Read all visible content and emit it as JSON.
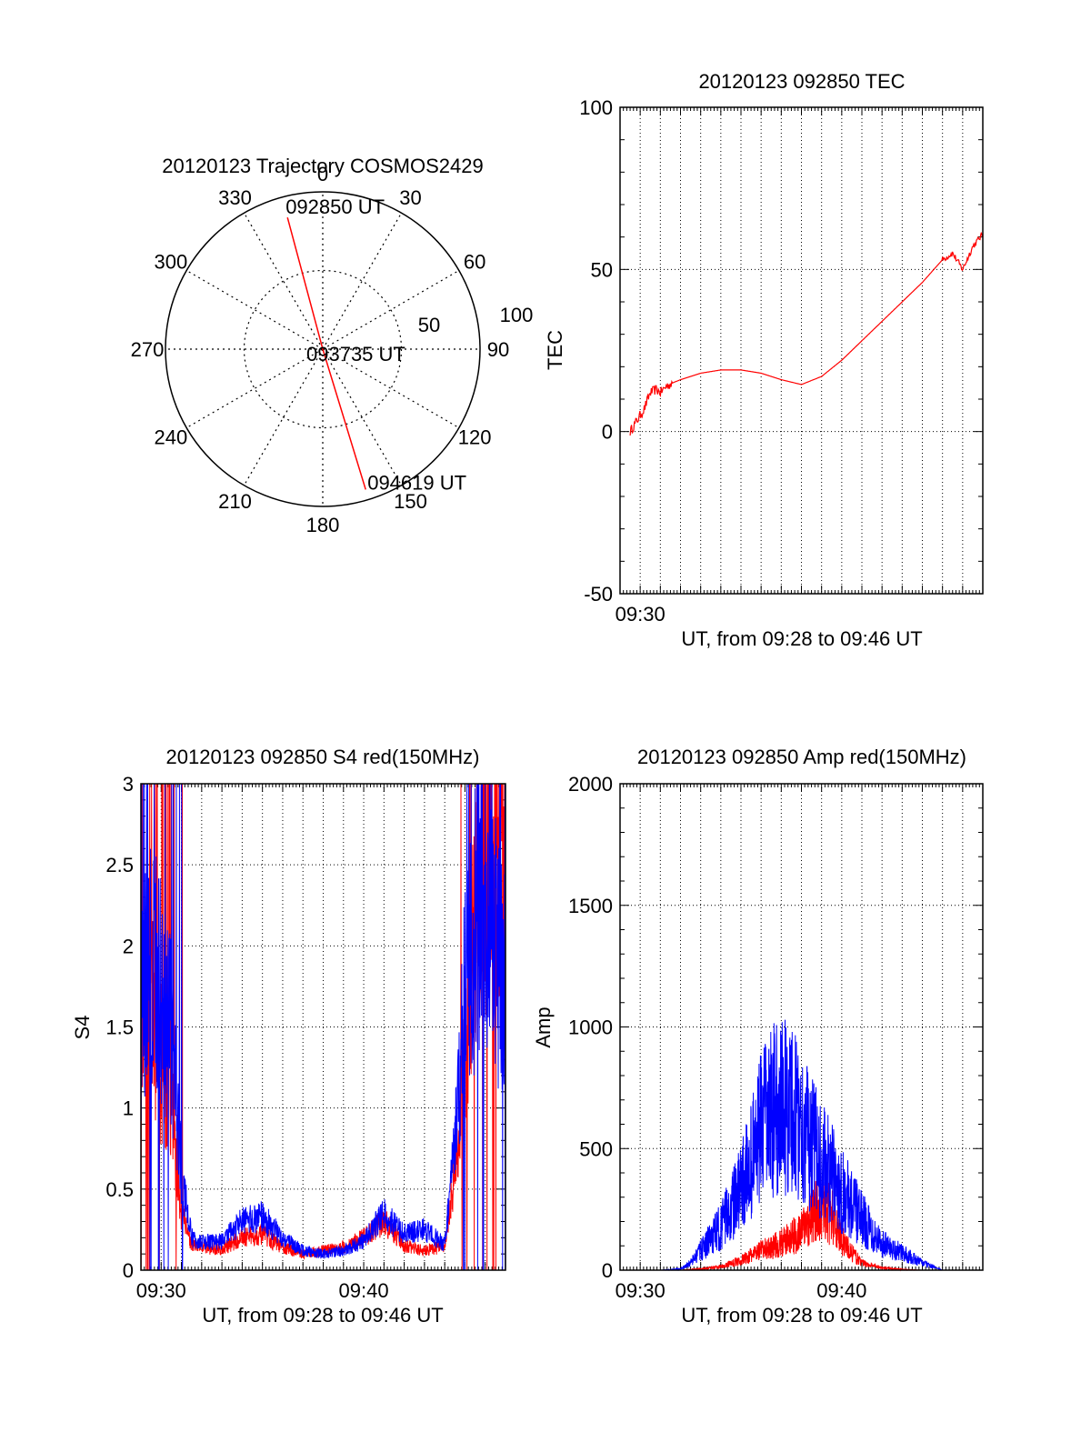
{
  "chart_data": [
    {
      "type": "polar",
      "title": "20120123 Trajectory COSMOS2429",
      "azimuth_labels": [
        "0",
        "30",
        "60",
        "90",
        "120",
        "150",
        "180",
        "210",
        "240",
        "270",
        "300",
        "330"
      ],
      "radial_labels": [
        "50",
        "100"
      ],
      "trajectory_color": "#ff0000",
      "trajectory": [
        {
          "az": 345,
          "el": 12,
          "label": "092850 UT"
        },
        {
          "az": 0,
          "el": 90,
          "label": "093735 UT"
        },
        {
          "az": 163,
          "el": 6,
          "label": "094619 UT"
        }
      ]
    },
    {
      "type": "line",
      "title": "20120123 092850 TEC",
      "xlabel": "UT, from 09:28 to 09:46 UT",
      "ylabel": "TEC",
      "xlim": [
        0,
        18
      ],
      "ylim": [
        -50,
        100
      ],
      "yticks": [
        "-50",
        "0",
        "50",
        "100"
      ],
      "xticks": [
        {
          "x": 1,
          "label": "09:30"
        }
      ],
      "grid": true,
      "series": [
        {
          "color": "#ff0000",
          "x": [
            0.5,
            0.8,
            1.2,
            1.5,
            1.8,
            2.0,
            2.3,
            2.6,
            3,
            4,
            5,
            6,
            7,
            8,
            9,
            10,
            11,
            12,
            13,
            14,
            15,
            16,
            16.5,
            17,
            17.5,
            18
          ],
          "y": [
            0,
            3,
            7,
            12,
            13,
            12,
            14,
            15,
            16,
            18,
            19,
            19,
            18,
            16,
            14.5,
            17,
            22,
            28,
            34,
            40,
            46,
            53,
            55,
            50,
            57,
            61
          ]
        }
      ]
    },
    {
      "type": "line",
      "title": "20120123 092850 S4 red(150MHz)",
      "xlabel": "UT, from 09:28 to 09:46 UT",
      "ylabel": "S4",
      "xlim": [
        0,
        18
      ],
      "ylim": [
        0,
        3
      ],
      "yticks": [
        "0",
        "0.5",
        "1",
        "1.5",
        "2",
        "2.5",
        "3"
      ],
      "xticks": [
        {
          "x": 1,
          "label": "09:30"
        },
        {
          "x": 11,
          "label": "09:40"
        }
      ],
      "grid": true,
      "series": [
        {
          "color": "#ff0000",
          "x": [
            0,
            0.5,
            1,
            1.5,
            2,
            2.5,
            3,
            4,
            5,
            6,
            7,
            8,
            9,
            10,
            11,
            12,
            13,
            14,
            15,
            15.5,
            16,
            16.5,
            17,
            17.5,
            18
          ],
          "y": [
            1.5,
            1.6,
            1.2,
            1.0,
            0.4,
            0.15,
            0.14,
            0.13,
            0.2,
            0.22,
            0.14,
            0.1,
            0.12,
            0.14,
            0.2,
            0.3,
            0.15,
            0.12,
            0.15,
            0.6,
            1.2,
            2.2,
            2.6,
            2.5,
            2.4
          ]
        },
        {
          "color": "#0000ff",
          "x": [
            0,
            0.5,
            1,
            1.5,
            2,
            2.5,
            3,
            4,
            5,
            6,
            7,
            8,
            9,
            10,
            11,
            12,
            13,
            14,
            15,
            15.5,
            16,
            16.5,
            17,
            17.5,
            18
          ],
          "y": [
            1.5,
            1.9,
            1.6,
            1.4,
            0.6,
            0.2,
            0.17,
            0.18,
            0.3,
            0.33,
            0.2,
            0.12,
            0.1,
            0.12,
            0.18,
            0.35,
            0.22,
            0.25,
            0.16,
            0.8,
            1.6,
            2.0,
            2.2,
            1.9,
            1.6
          ]
        }
      ]
    },
    {
      "type": "line",
      "title": "20120123 092850 Amp red(150MHz)",
      "xlabel": "UT, from 09:28 to 09:46 UT",
      "ylabel": "Amp",
      "xlim": [
        0,
        18
      ],
      "ylim": [
        0,
        2000
      ],
      "yticks": [
        "0",
        "500",
        "1000",
        "1500",
        "2000"
      ],
      "xticks": [
        {
          "x": 1,
          "label": "09:30"
        },
        {
          "x": 11,
          "label": "09:40"
        }
      ],
      "grid": true,
      "series": [
        {
          "color": "#ff0000",
          "x": [
            0,
            1,
            2,
            3,
            4,
            5,
            6,
            7,
            8,
            9,
            9.5,
            10,
            10.5,
            11,
            11.5,
            12,
            13,
            14,
            15,
            16,
            17,
            18
          ],
          "y": [
            0,
            0,
            0,
            0,
            5,
            15,
            40,
            80,
            110,
            160,
            220,
            260,
            220,
            130,
            70,
            30,
            10,
            3,
            0,
            0,
            0,
            0
          ]
        },
        {
          "color": "#0000ff",
          "x": [
            0,
            1,
            2,
            3,
            3.5,
            4,
            5,
            6,
            6.5,
            7,
            7.5,
            8,
            8.5,
            9,
            9.5,
            10,
            11,
            12,
            13,
            14,
            15,
            16,
            17,
            18
          ],
          "y": [
            0,
            0,
            0,
            5,
            30,
            80,
            180,
            330,
            450,
            580,
            650,
            680,
            660,
            600,
            520,
            450,
            330,
            210,
            110,
            70,
            30,
            0,
            0,
            0
          ]
        }
      ]
    }
  ]
}
